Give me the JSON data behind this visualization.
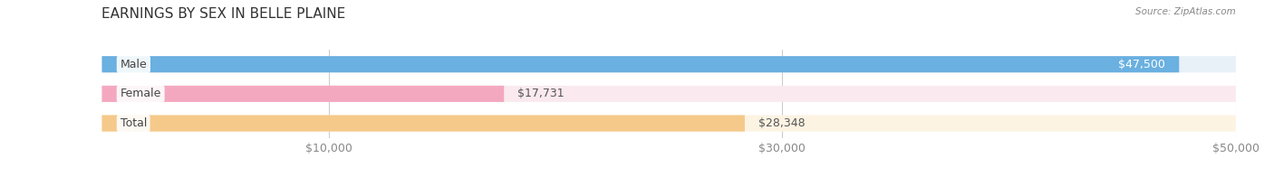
{
  "title": "EARNINGS BY SEX IN BELLE PLAINE",
  "source": "Source: ZipAtlas.com",
  "categories": [
    "Male",
    "Female",
    "Total"
  ],
  "values": [
    47500,
    17731,
    28348
  ],
  "labels": [
    "$47,500",
    "$17,731",
    "$28,348"
  ],
  "bar_colors": [
    "#6ab0e0",
    "#f4a8c0",
    "#f5c98a"
  ],
  "bar_bg_colors": [
    "#e8f0f8",
    "#faeaf0",
    "#fdf3e3"
  ],
  "xlim": [
    0,
    50000
  ],
  "xticks": [
    10000,
    30000,
    50000
  ],
  "xticklabels": [
    "$10,000",
    "$30,000",
    "$50,000"
  ],
  "figsize": [
    14.06,
    1.96
  ],
  "dpi": 100,
  "title_fontsize": 11,
  "label_fontsize": 9,
  "bar_height": 0.55,
  "background_color": "#ffffff"
}
